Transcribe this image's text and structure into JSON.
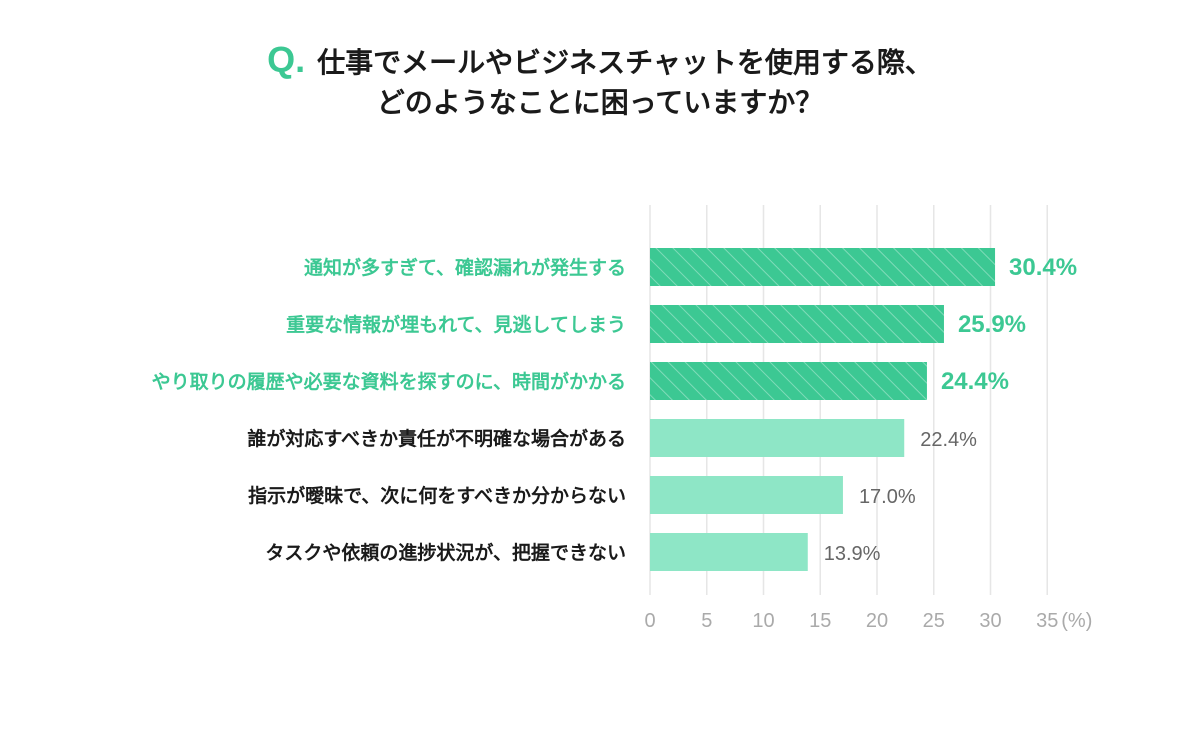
{
  "header": {
    "q_mark": "Q.",
    "line1": "仕事でメールやビジネスチャットを使用する際、",
    "line2": "どのようなことに困っていますか？"
  },
  "colors": {
    "highlight": "#3cc893",
    "normal": "#8ee6c6",
    "highlight_label": "#3cc893",
    "normal_label": "#1a1a1a",
    "value_normal": "#666666",
    "grid": "#e6e6e6",
    "tick": "#aaaaaa"
  },
  "chart_data": {
    "type": "bar",
    "orientation": "horizontal",
    "categories": [
      "通知が多すぎて、確認漏れが発生する",
      "重要な情報が埋もれて、見逃してしまう",
      "やり取りの履歴や必要な資料を探すのに、時間がかかる",
      "誰が対応すべきか責任が不明確な場合がある",
      "指示が曖昧で、次に何をすべきか分からない",
      "タスクや依頼の進捗状況が、把握できない"
    ],
    "values": [
      30.4,
      25.9,
      24.4,
      22.4,
      17.0,
      13.9
    ],
    "value_labels": [
      "30.4%",
      "25.9%",
      "24.4%",
      "22.4%",
      "17.0%",
      "13.9%"
    ],
    "highlighted": [
      true,
      true,
      true,
      false,
      false,
      false
    ],
    "xlim": [
      0,
      35
    ],
    "xticks": [
      "0",
      "5",
      "10",
      "15",
      "20",
      "25",
      "30",
      "35"
    ],
    "x_unit": "(%)",
    "grid": true
  }
}
